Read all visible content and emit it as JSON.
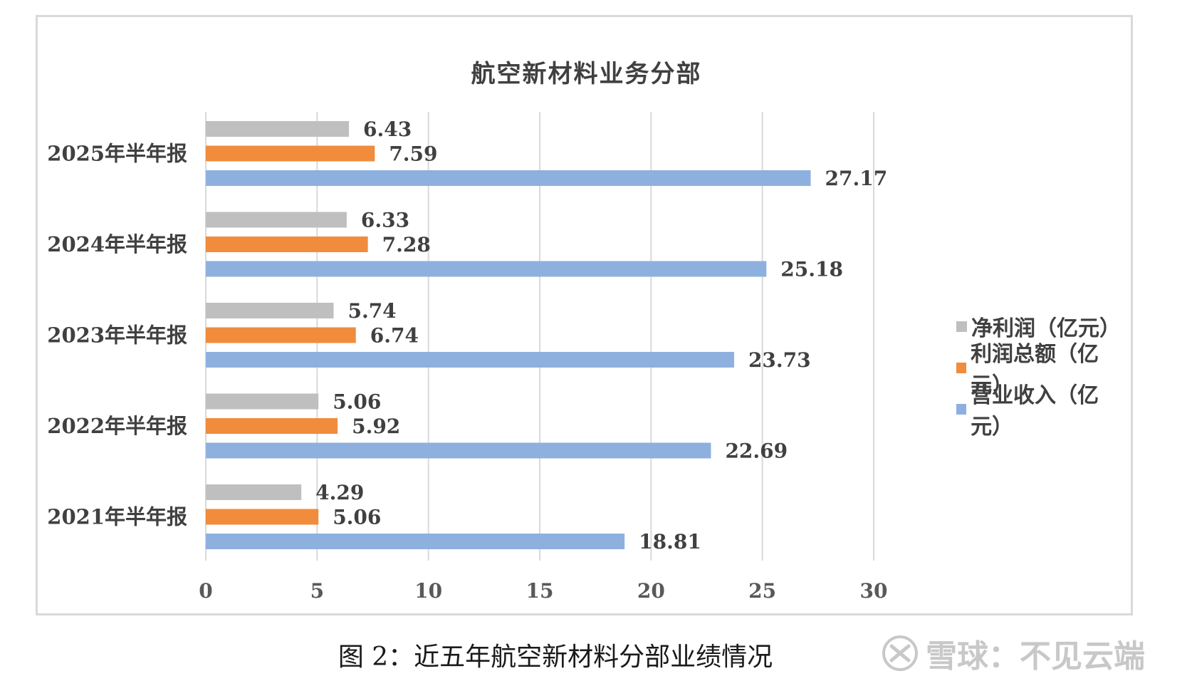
{
  "chart_data": {
    "type": "bar",
    "orientation": "horizontal",
    "title": "航空新材料业务分部",
    "categories": [
      "2025年半年报",
      "2024年半年报",
      "2023年半年报",
      "2022年半年报",
      "2021年半年报"
    ],
    "series": [
      {
        "name": "净利润（亿元）",
        "color": "#bfbfbf",
        "values": [
          6.43,
          6.33,
          5.74,
          5.06,
          4.29
        ]
      },
      {
        "name": "利润总额（亿元）",
        "color": "#f08c3c",
        "values": [
          7.59,
          7.28,
          6.74,
          5.92,
          5.06
        ]
      },
      {
        "name": "营业收入（亿元）",
        "color": "#8eb0de",
        "values": [
          27.17,
          25.18,
          23.73,
          22.69,
          18.81
        ]
      }
    ],
    "x_ticks": [
      0,
      5,
      10,
      15,
      20,
      25,
      30
    ],
    "xlim": [
      0,
      30
    ],
    "grid": true,
    "legend_position": "right",
    "data_labels": true
  },
  "caption": "图 2：近五年航空新材料分部业绩情况",
  "watermark": "雪球：不见云端"
}
